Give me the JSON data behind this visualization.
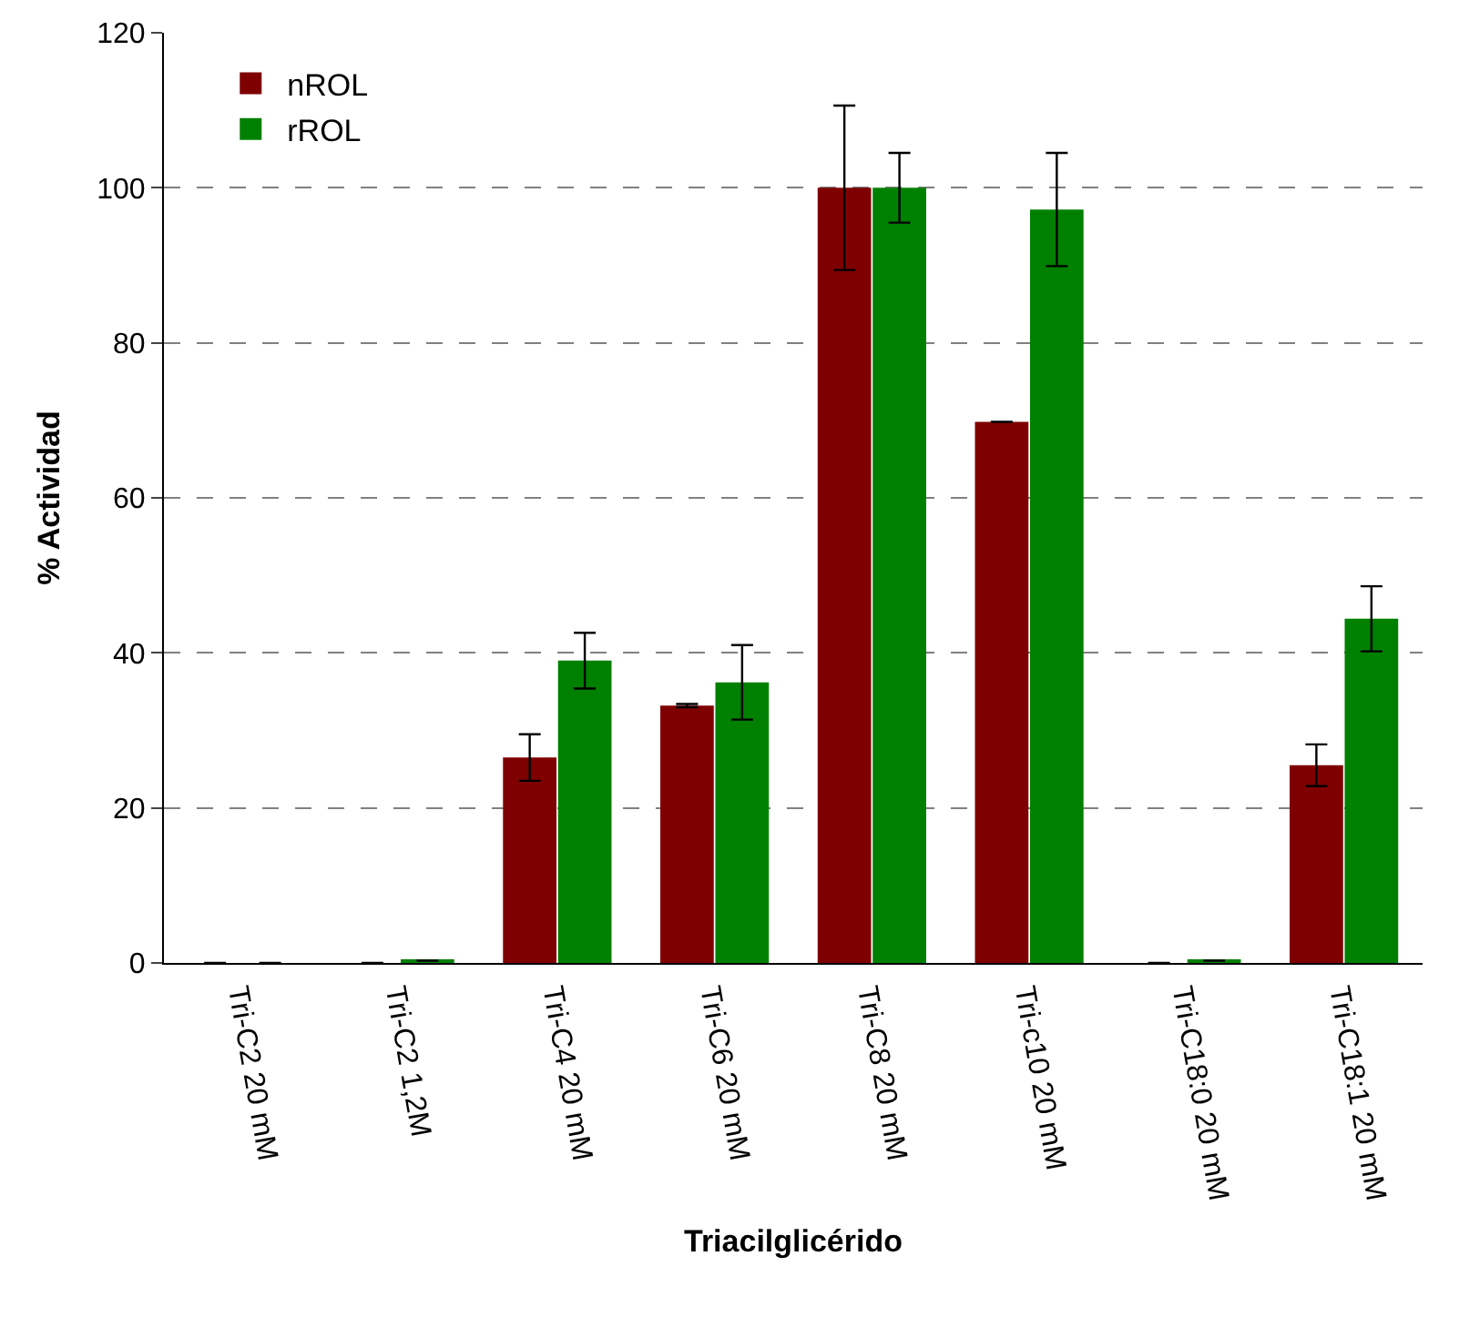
{
  "chart_data": {
    "type": "bar",
    "xlabel": "Triacilglicérido",
    "ylabel": "% Actividad",
    "categories": [
      "Tri-C2 20 mM",
      "Tri-C2 1,2M",
      "Tri-C4 20 mM",
      "Tri-C6 20 mM",
      "Tri-C8 20 mM",
      "Tri-c10 20 mM",
      "Tri-C18:0 20 mM",
      "Tri-C18:1 20 mM"
    ],
    "series": [
      {
        "name": "nROL",
        "color": "#7f0000",
        "values": [
          0,
          0,
          26.5,
          33.2,
          100,
          69.8,
          0,
          25.5
        ],
        "errors": [
          null,
          null,
          3.0,
          0.2,
          10.6,
          null,
          null,
          2.7
        ]
      },
      {
        "name": "rROL",
        "color": "#008000",
        "values": [
          0,
          0.3,
          39.0,
          36.2,
          100,
          97.2,
          0.3,
          44.4
        ],
        "errors": [
          null,
          null,
          3.6,
          4.8,
          4.5,
          7.3,
          null,
          4.2
        ]
      }
    ],
    "ylim": [
      0,
      120
    ],
    "yticks": [
      0,
      20,
      40,
      60,
      80,
      100,
      120
    ],
    "grid": "y",
    "legend": "top left"
  }
}
